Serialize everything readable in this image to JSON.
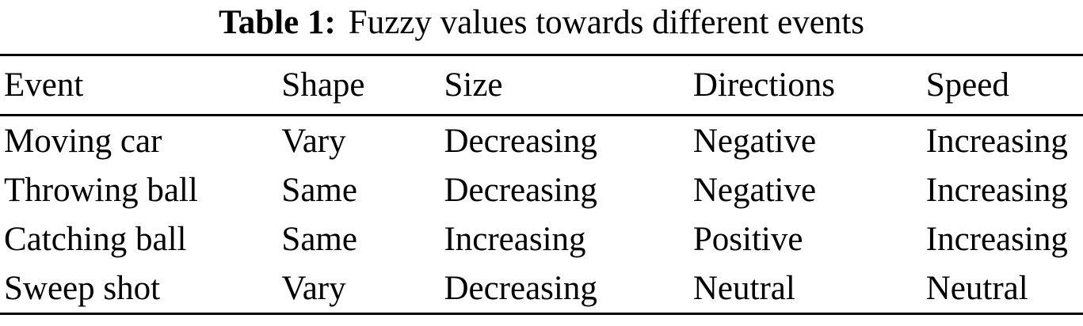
{
  "caption": {
    "label": "Table 1:",
    "text": "Fuzzy values towards different events"
  },
  "table": {
    "columns": [
      "Event",
      "Shape",
      "Size",
      "Directions",
      "Speed"
    ],
    "rows": [
      [
        "Moving car",
        "Vary",
        "Decreasing",
        "Negative",
        "Increasing"
      ],
      [
        "Throwing ball",
        "Same",
        "Decreasing",
        "Negative",
        "Increasing"
      ],
      [
        "Catching ball",
        "Same",
        "Increasing",
        "Positive",
        "Increasing"
      ],
      [
        "Sweep shot",
        "Vary",
        "Decreasing",
        "Neutral",
        "Neutral"
      ]
    ]
  },
  "colors": {
    "text": "#000000",
    "background": "#ffffff",
    "rule": "#000000"
  },
  "chart_data": {
    "type": "table",
    "title": "Table 1: Fuzzy values towards different events",
    "columns": [
      "Event",
      "Shape",
      "Size",
      "Directions",
      "Speed"
    ],
    "rows": [
      [
        "Moving car",
        "Vary",
        "Decreasing",
        "Negative",
        "Increasing"
      ],
      [
        "Throwing ball",
        "Same",
        "Decreasing",
        "Negative",
        "Increasing"
      ],
      [
        "Catching ball",
        "Same",
        "Increasing",
        "Positive",
        "Increasing"
      ],
      [
        "Sweep shot",
        "Vary",
        "Decreasing",
        "Neutral",
        "Neutral"
      ]
    ]
  }
}
